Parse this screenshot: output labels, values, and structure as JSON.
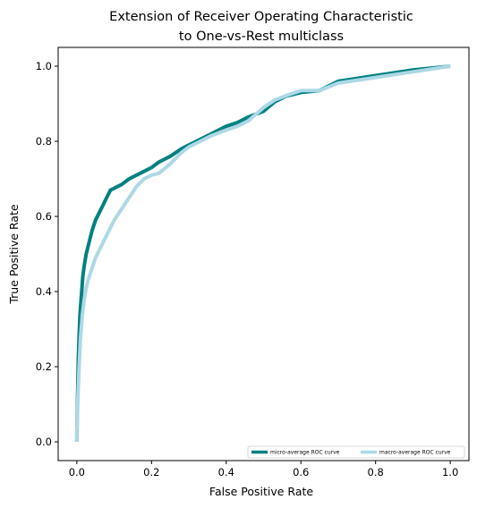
{
  "chart_data": {
    "type": "line",
    "title_line1": "Extension of Receiver Operating Characteristic",
    "title_line2": "to One-vs-Rest multiclass",
    "xlabel": "False Positive Rate",
    "ylabel": "True Positive Rate",
    "xlim": [
      -0.05,
      1.05
    ],
    "ylim": [
      -0.05,
      1.05
    ],
    "xticks": [
      0.0,
      0.2,
      0.4,
      0.6,
      0.8,
      1.0
    ],
    "yticks": [
      0.0,
      0.2,
      0.4,
      0.6,
      0.8,
      1.0
    ],
    "tick_labels": [
      "0.0",
      "0.2",
      "0.4",
      "0.6",
      "0.8",
      "1.0"
    ],
    "grid": false,
    "legend_position": "lower-right",
    "series": [
      {
        "name": "micro-average ROC curve",
        "color": "#008080",
        "x": [
          0.0,
          0.0,
          0.002,
          0.004,
          0.006,
          0.008,
          0.01,
          0.013,
          0.016,
          0.02,
          0.025,
          0.03,
          0.035,
          0.04,
          0.05,
          0.06,
          0.07,
          0.08,
          0.09,
          0.1,
          0.12,
          0.14,
          0.16,
          0.18,
          0.2,
          0.22,
          0.25,
          0.28,
          0.3,
          0.33,
          0.36,
          0.38,
          0.4,
          0.43,
          0.46,
          0.5,
          0.53,
          0.56,
          0.6,
          0.65,
          0.7,
          0.8,
          0.9,
          1.0
        ],
        "y": [
          0.0,
          0.02,
          0.12,
          0.22,
          0.28,
          0.33,
          0.36,
          0.4,
          0.44,
          0.47,
          0.5,
          0.52,
          0.54,
          0.56,
          0.59,
          0.61,
          0.63,
          0.65,
          0.67,
          0.675,
          0.685,
          0.7,
          0.71,
          0.72,
          0.73,
          0.745,
          0.76,
          0.78,
          0.79,
          0.805,
          0.82,
          0.83,
          0.84,
          0.85,
          0.865,
          0.88,
          0.905,
          0.92,
          0.93,
          0.935,
          0.96,
          0.975,
          0.99,
          1.0
        ]
      },
      {
        "name": "macro-average ROC curve",
        "color": "#add8e6",
        "x": [
          0.0,
          0.0,
          0.003,
          0.006,
          0.01,
          0.015,
          0.02,
          0.025,
          0.03,
          0.04,
          0.05,
          0.06,
          0.07,
          0.08,
          0.09,
          0.1,
          0.12,
          0.14,
          0.16,
          0.18,
          0.2,
          0.22,
          0.25,
          0.28,
          0.3,
          0.33,
          0.36,
          0.4,
          0.43,
          0.46,
          0.5,
          0.53,
          0.57,
          0.6,
          0.65,
          0.7,
          0.8,
          0.9,
          1.0
        ],
        "y": [
          0.0,
          0.03,
          0.12,
          0.2,
          0.28,
          0.34,
          0.38,
          0.41,
          0.43,
          0.46,
          0.49,
          0.51,
          0.53,
          0.55,
          0.57,
          0.59,
          0.62,
          0.65,
          0.68,
          0.7,
          0.71,
          0.715,
          0.74,
          0.77,
          0.785,
          0.8,
          0.815,
          0.83,
          0.84,
          0.855,
          0.89,
          0.91,
          0.925,
          0.935,
          0.935,
          0.955,
          0.97,
          0.985,
          1.0
        ]
      }
    ]
  }
}
